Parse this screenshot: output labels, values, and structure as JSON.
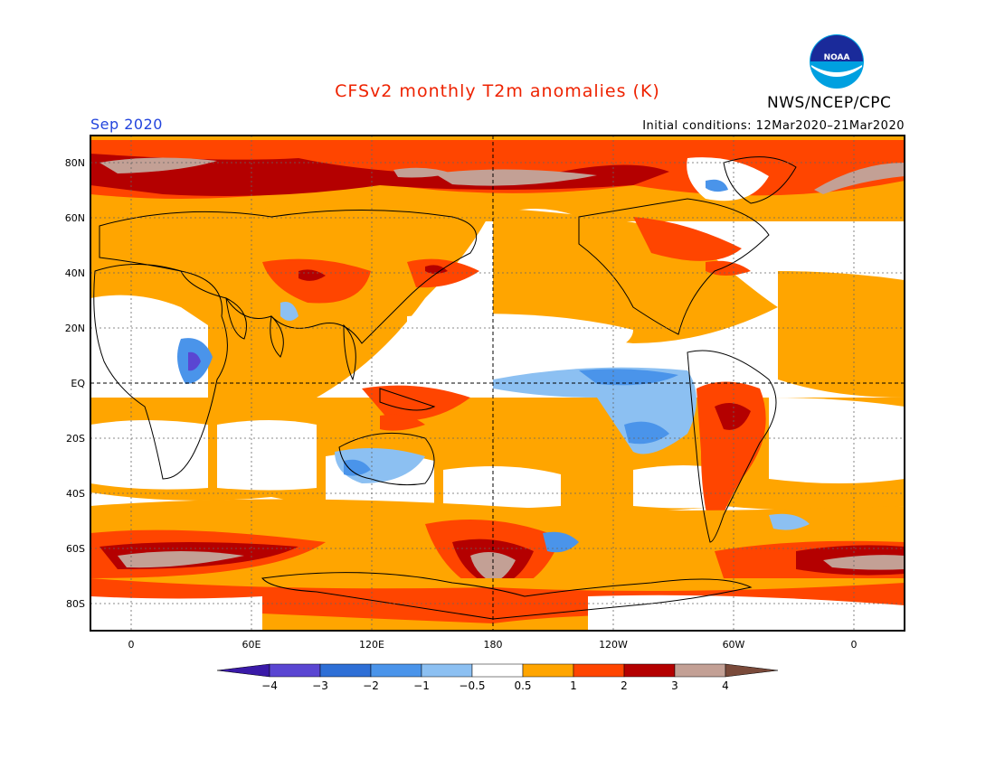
{
  "header": {
    "title": "CFSv2 monthly T2m anomalies (K)",
    "organization": "NWS/NCEP/CPC",
    "valid_month": "Sep 2020",
    "initial_conditions": "Initial conditions: 12Mar2020–21Mar2020"
  },
  "logo": {
    "text": "NOAA"
  },
  "map": {
    "lat_labels": [
      "80N",
      "60N",
      "40N",
      "20N",
      "EQ",
      "20S",
      "40S",
      "60S",
      "80S"
    ],
    "lon_labels": [
      "0",
      "60E",
      "120E",
      "180",
      "120W",
      "60W",
      "0"
    ]
  },
  "colorbar": {
    "labels": [
      "−4",
      "−3",
      "−2",
      "−1",
      "−0.5",
      "0.5",
      "1",
      "2",
      "3",
      "4"
    ],
    "colors": [
      "#3a1aa8",
      "#5a46d2",
      "#2e6fd6",
      "#4a94ea",
      "#8cc0f2",
      "#ffffff",
      "#ffa500",
      "#ff4500",
      "#b40000",
      "#c3a095",
      "#7a4a3a"
    ]
  },
  "colors": {
    "warm_1": "#ffa500",
    "warm_2": "#ff4500",
    "warm_3": "#b40000",
    "warm_4": "#c3a095",
    "cool_1": "#8cc0f2",
    "cool_2": "#4a94ea"
  }
}
